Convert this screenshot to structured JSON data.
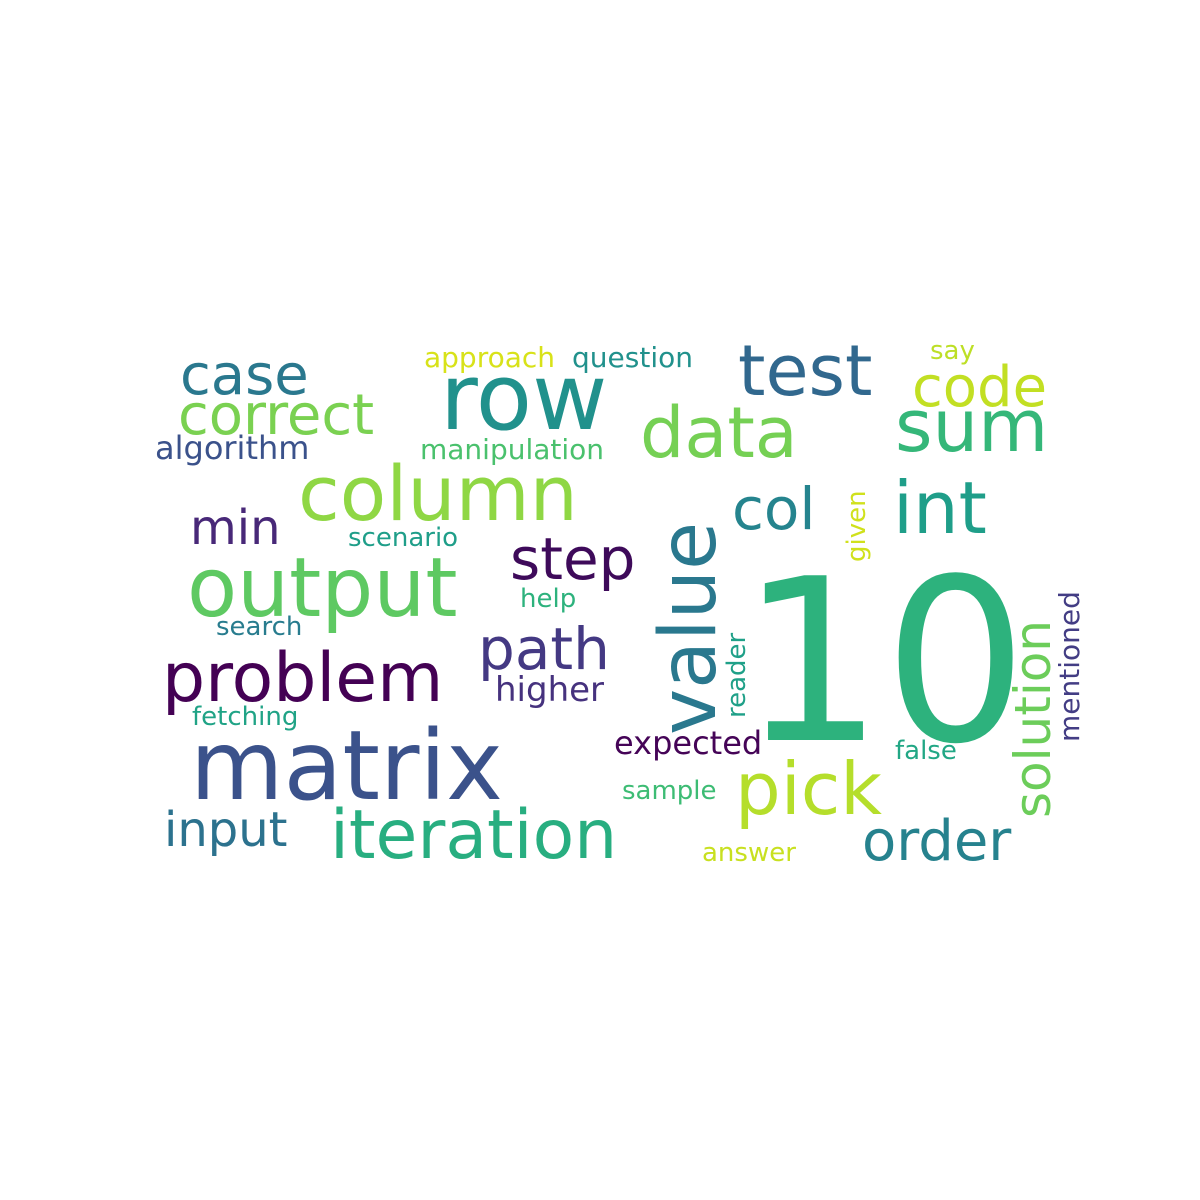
{
  "words": [
    {
      "text": "10",
      "color": "#2db27d"
    },
    {
      "text": "matrix",
      "color": "#3b528b"
    },
    {
      "text": "row",
      "color": "#21918c"
    },
    {
      "text": "value",
      "color": "#2a788e"
    },
    {
      "text": "column",
      "color": "#8fd744"
    },
    {
      "text": "output",
      "color": "#5ec962"
    },
    {
      "text": "iteration",
      "color": "#28ae80"
    },
    {
      "text": "problem",
      "color": "#440154"
    },
    {
      "text": "pick",
      "color": "#b5de2b"
    },
    {
      "text": "test",
      "color": "#31688e"
    },
    {
      "text": "data",
      "color": "#75d054"
    },
    {
      "text": "sum",
      "color": "#35b779"
    },
    {
      "text": "int",
      "color": "#1f9e89"
    },
    {
      "text": "correct",
      "color": "#7ad151"
    },
    {
      "text": "case",
      "color": "#2a788e"
    },
    {
      "text": "code",
      "color": "#c2df23"
    },
    {
      "text": "path",
      "color": "#443983"
    },
    {
      "text": "step",
      "color": "#3e0a5a"
    },
    {
      "text": "col",
      "color": "#25848e"
    },
    {
      "text": "min",
      "color": "#482878"
    },
    {
      "text": "order",
      "color": "#26828e"
    },
    {
      "text": "input",
      "color": "#2c728e"
    },
    {
      "text": "solution",
      "color": "#6ccd5a"
    },
    {
      "text": "higher",
      "color": "#46327e"
    },
    {
      "text": "expected",
      "color": "#450457"
    },
    {
      "text": "algorithm",
      "color": "#3b528b"
    },
    {
      "text": "manipulation",
      "color": "#4ac16d"
    },
    {
      "text": "approach",
      "color": "#d8e219"
    },
    {
      "text": "question",
      "color": "#21918c"
    },
    {
      "text": "scenario",
      "color": "#1f9e89"
    },
    {
      "text": "help",
      "color": "#2db27d"
    },
    {
      "text": "search",
      "color": "#287c8e"
    },
    {
      "text": "fetching",
      "color": "#20a386"
    },
    {
      "text": "sample",
      "color": "#3dbc74"
    },
    {
      "text": "answer",
      "color": "#c8e020"
    },
    {
      "text": "false",
      "color": "#22a785"
    },
    {
      "text": "say",
      "color": "#bddf26"
    },
    {
      "text": "given",
      "color": "#d0e11c"
    },
    {
      "text": "reader",
      "color": "#1fa088"
    },
    {
      "text": "mentioned",
      "color": "#433d84"
    }
  ]
}
